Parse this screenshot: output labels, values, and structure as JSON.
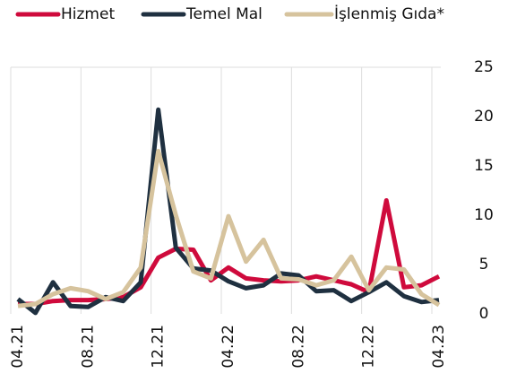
{
  "chart_data": {
    "type": "line",
    "categories": [
      "04.21",
      null,
      null,
      null,
      "08.21",
      null,
      null,
      null,
      "12.21",
      null,
      null,
      null,
      "04.22",
      null,
      null,
      null,
      "08.22",
      null,
      null,
      null,
      "12.22",
      null,
      null,
      null,
      "04.23"
    ],
    "series": [
      {
        "name": "Hizmet",
        "color": "#cf0a3c",
        "values": [
          1.0,
          1.0,
          1.3,
          1.4,
          1.4,
          1.5,
          1.7,
          2.7,
          5.7,
          6.6,
          6.5,
          3.4,
          4.7,
          3.6,
          3.4,
          3.3,
          3.4,
          3.8,
          3.4,
          3.0,
          2.2,
          11.5,
          2.7,
          2.9,
          3.8
        ]
      },
      {
        "name": "Temel Mal",
        "color": "#1f3040",
        "values": [
          1.5,
          0.1,
          3.2,
          0.8,
          0.7,
          1.7,
          1.3,
          3.2,
          20.7,
          6.7,
          4.6,
          4.4,
          3.3,
          2.6,
          2.9,
          4.1,
          3.9,
          2.3,
          2.4,
          1.3,
          2.2,
          3.2,
          1.8,
          1.2,
          1.4
        ]
      },
      {
        "name": "İşlenmiş Gıda*",
        "color": "#d6c39d",
        "values": [
          0.8,
          1.0,
          2.0,
          2.6,
          2.3,
          1.5,
          2.2,
          4.7,
          16.5,
          10.0,
          4.3,
          3.6,
          9.9,
          5.3,
          7.5,
          3.6,
          3.5,
          2.9,
          3.4,
          5.8,
          2.4,
          4.7,
          4.5,
          2.0,
          0.9
        ]
      }
    ],
    "ylim": [
      0,
      25
    ],
    "yticks": [
      0,
      5,
      10,
      15,
      20,
      25
    ],
    "grid": true
  }
}
